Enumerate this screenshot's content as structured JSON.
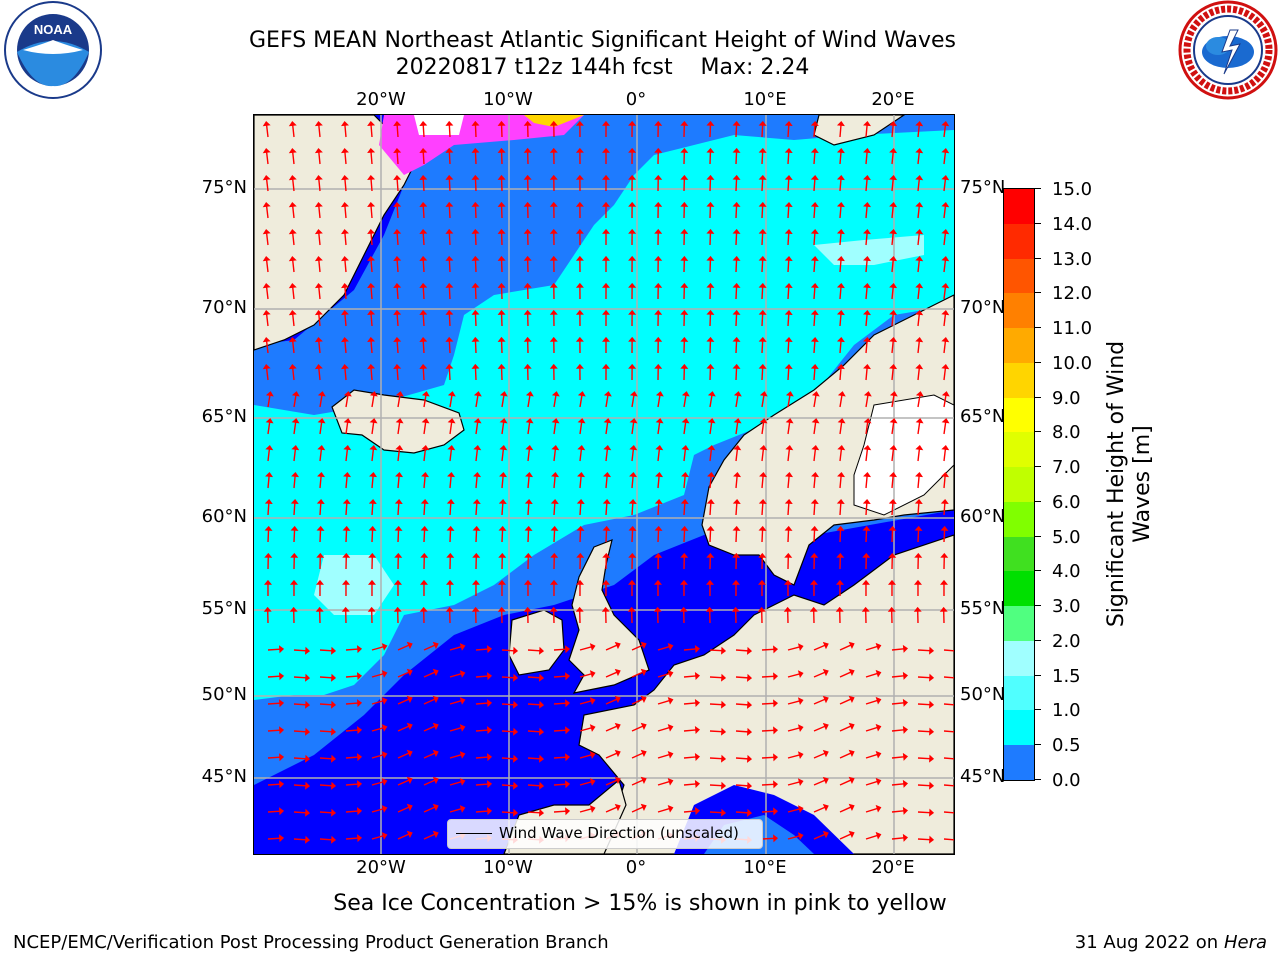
{
  "header": {
    "title_line1": "GEFS MEAN Northeast Atlantic Significant Height of Wind Waves",
    "title_line2": "20220817 t12z 144h fcst    Max: 2.24"
  },
  "logos": {
    "noaa_text": "NOAA",
    "noaa_ring_text": "NATIONAL OCEANIC AND ATMOSPHERIC ADMINISTRATION · U.S. DEPARTMENT OF COMMERCE",
    "nws_ring_text": "NATIONAL WEATHER SERVICE"
  },
  "map": {
    "lon_ticks": [
      "20°W",
      "10°W",
      "0°",
      "10°E",
      "20°E"
    ],
    "lat_ticks": [
      "75°N",
      "70°N",
      "65°N",
      "60°N",
      "55°N",
      "50°N",
      "45°N"
    ],
    "legend_label": "Wind Wave Direction (unscaled)",
    "colors": {
      "ocean_low": "#0000ff",
      "ocean_mid": "#1e7bff",
      "ocean_high": "#00ffff",
      "ocean_highest": "#a0ffff",
      "land": "#efecdc",
      "arrow": "#ff0000",
      "grid": "#b0b0b0",
      "coast": "#000000",
      "ice": "#ff40ff"
    }
  },
  "colorbar": {
    "title": "Significant Height of Wind Waves [m]",
    "labels": [
      "15.0",
      "14.0",
      "13.0",
      "12.0",
      "11.0",
      "10.0",
      "9.0",
      "8.0",
      "7.0",
      "6.0",
      "5.0",
      "4.0",
      "3.0",
      "2.0",
      "1.5",
      "1.0",
      "0.5",
      "0.0"
    ],
    "colors": [
      "#ff0000",
      "#ff2a00",
      "#ff5500",
      "#ff8000",
      "#ffaa00",
      "#ffd500",
      "#ffff00",
      "#e0ff00",
      "#c0ff00",
      "#80ff00",
      "#40e020",
      "#00e000",
      "#50ff80",
      "#a0ffff",
      "#50ffff",
      "#00ffff",
      "#1e7bff",
      "#0000ff"
    ]
  },
  "subtitle": "Sea Ice Concentration > 15% is shown in pink to yellow",
  "footer": {
    "left": "NCEP/EMC/Verification Post Processing Product Generation Branch",
    "date": "31 Aug 2022 on",
    "machine": "Hera"
  }
}
